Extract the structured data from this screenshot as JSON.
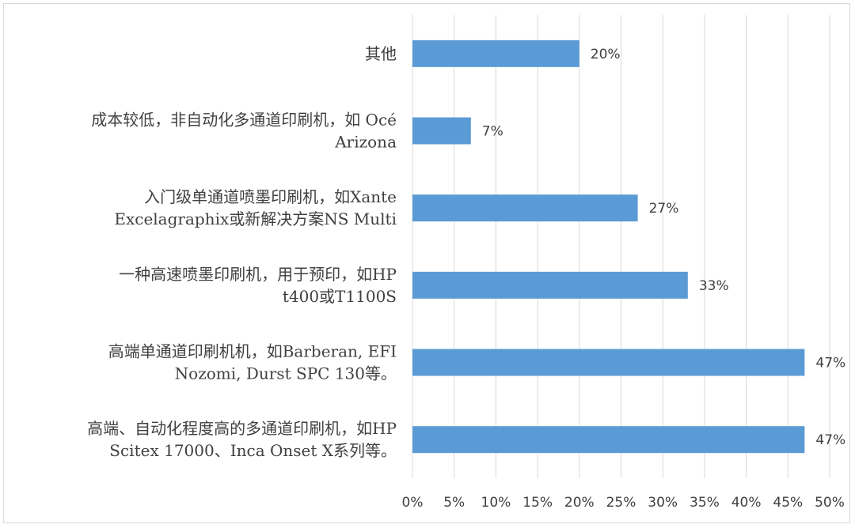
{
  "chart_data": {
    "type": "bar",
    "orientation": "horizontal",
    "categories": [
      [
        "其他"
      ],
      [
        "成本较低，非自动化多通道印刷机，如 Océ",
        "Arizona"
      ],
      [
        "入门级单通道喷墨印刷机，如Xante",
        "Excelagraphix或新解决方案NS Multi"
      ],
      [
        "一种高速喷墨印刷机，用于预印，如HP",
        "t400或T1100S"
      ],
      [
        "高端单通道印刷机机，如Barberan, EFI",
        "Nozomi, Durst SPC 130等。"
      ],
      [
        "高端、自动化程度高的多通道印刷机，如HP",
        "Scitex 17000、Inca Onset X系列等。"
      ]
    ],
    "values": [
      20,
      7,
      27,
      33,
      47,
      47
    ],
    "data_labels": [
      "20%",
      "7%",
      "27%",
      "33%",
      "47%",
      "47%"
    ],
    "xlim": [
      0,
      50
    ],
    "xticks": [
      0,
      5,
      10,
      15,
      20,
      25,
      30,
      35,
      40,
      45,
      50
    ],
    "xtick_labels": [
      "0%",
      "5%",
      "10%",
      "15%",
      "20%",
      "25%",
      "30%",
      "35%",
      "40%",
      "45%",
      "50%"
    ],
    "grid": "vertical",
    "bar_color": "#5b9bd5",
    "grid_color": "#d9d9d9",
    "text_color": "#404040",
    "legend": "none"
  }
}
